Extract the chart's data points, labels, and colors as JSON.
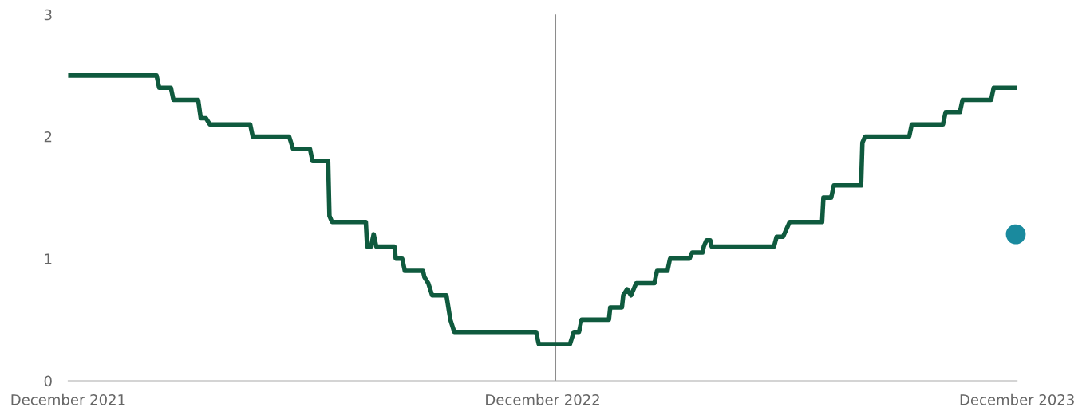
{
  "chart_data": {
    "type": "line",
    "xlim": [
      "2021-12-01",
      "2023-12-01"
    ],
    "xticks": [
      {
        "value": "2021-12-01",
        "label": "December 2021"
      },
      {
        "value": "2022-12-01",
        "label": "December 2022"
      },
      {
        "value": "2023-12-01",
        "label": "December 2023"
      }
    ],
    "ylim": [
      0,
      3
    ],
    "yticks": [
      0,
      1,
      2,
      3
    ],
    "grid": false,
    "legend": false,
    "ref_lines": [
      {
        "axis": "x",
        "value": "2022-12-11",
        "color": "#8c8c8c"
      }
    ],
    "series": [
      {
        "color": "#0f5a3e",
        "x": [
          "2021-12-01",
          "2022-02-07",
          "2022-02-09",
          "2022-02-18",
          "2022-02-20",
          "2022-03-11",
          "2022-03-13",
          "2022-03-17",
          "2022-03-20",
          "2022-04-20",
          "2022-04-22",
          "2022-05-20",
          "2022-05-23",
          "2022-06-05",
          "2022-06-07",
          "2022-06-19",
          "2022-06-20",
          "2022-06-22",
          "2022-07-18",
          "2022-07-19",
          "2022-07-22",
          "2022-07-24",
          "2022-07-26",
          "2022-08-09",
          "2022-08-10",
          "2022-08-15",
          "2022-08-17",
          "2022-08-31",
          "2022-09-01",
          "2022-09-04",
          "2022-09-07",
          "2022-09-18",
          "2022-09-21",
          "2022-09-24",
          "2022-11-26",
          "2022-11-28",
          "2022-12-22",
          "2022-12-25",
          "2022-12-29",
          "2022-12-31",
          "2023-01-21",
          "2023-01-22",
          "2023-01-31",
          "2023-02-01",
          "2023-02-04",
          "2023-02-07",
          "2023-02-11",
          "2023-02-25",
          "2023-02-27",
          "2023-03-07",
          "2023-03-09",
          "2023-03-24",
          "2023-03-26",
          "2023-04-03",
          "2023-04-04",
          "2023-04-06",
          "2023-04-09",
          "2023-04-10",
          "2023-05-28",
          "2023-05-30",
          "2023-06-04",
          "2023-06-09",
          "2023-07-04",
          "2023-07-05",
          "2023-07-11",
          "2023-07-13",
          "2023-08-03",
          "2023-08-04",
          "2023-08-06",
          "2023-09-09",
          "2023-09-11",
          "2023-10-05",
          "2023-10-07",
          "2023-10-18",
          "2023-10-20",
          "2023-11-11",
          "2023-11-13",
          "2023-12-01"
        ],
        "values": [
          2.5,
          2.5,
          2.4,
          2.4,
          2.3,
          2.3,
          2.15,
          2.15,
          2.1,
          2.1,
          2.0,
          2.0,
          1.9,
          1.9,
          1.8,
          1.8,
          1.35,
          1.3,
          1.3,
          1.1,
          1.1,
          1.2,
          1.1,
          1.1,
          1.0,
          1.0,
          0.9,
          0.9,
          0.85,
          0.8,
          0.7,
          0.7,
          0.5,
          0.4,
          0.4,
          0.3,
          0.3,
          0.4,
          0.4,
          0.5,
          0.5,
          0.6,
          0.6,
          0.7,
          0.75,
          0.7,
          0.8,
          0.8,
          0.9,
          0.9,
          1.0,
          1.0,
          1.05,
          1.05,
          1.1,
          1.15,
          1.15,
          1.1,
          1.1,
          1.18,
          1.18,
          1.3,
          1.3,
          1.5,
          1.5,
          1.6,
          1.6,
          1.95,
          2.0,
          2.0,
          2.1,
          2.1,
          2.2,
          2.2,
          2.3,
          2.3,
          2.4,
          2.4
        ]
      },
      {
        "type": "scatter",
        "color": "#1a8a9e",
        "x": [
          "2023-11-30"
        ],
        "values": [
          1.2
        ]
      }
    ]
  }
}
